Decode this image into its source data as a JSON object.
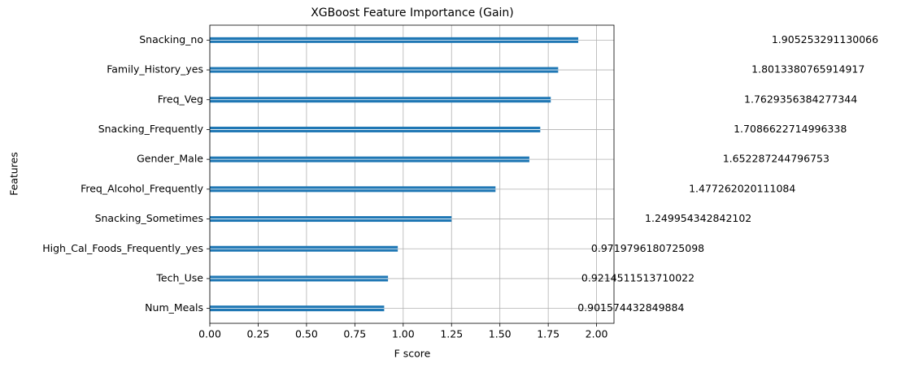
{
  "chart_data": {
    "type": "barh",
    "title": "XGBoost Feature Importance (Gain)",
    "xlabel": "F score",
    "ylabel": "Features",
    "categories": [
      "Snacking_no",
      "Family_History_yes",
      "Freq_Veg",
      "Snacking_Frequently",
      "Gender_Male",
      "Freq_Alcohol_Frequently",
      "Snacking_Sometimes",
      "High_Cal_Foods_Frequently_yes",
      "Tech_Use",
      "Num_Meals"
    ],
    "values": [
      1.905253291130066,
      1.8013380765914917,
      1.7629356384277344,
      1.7086622714996338,
      1.652287244796753,
      1.477262020111084,
      1.249954342842102,
      0.9719796180725098,
      0.9214511513710022,
      0.901574432849884
    ],
    "color": "#1f77b4",
    "xlim": [
      0,
      2.09
    ],
    "xticks": [
      {
        "value": 0,
        "label": "0.00"
      },
      0.25,
      {
        "value": 0.5,
        "label": "0.50"
      },
      0.75,
      {
        "value": 1,
        "label": "1.00"
      },
      1.25,
      {
        "value": 1.5,
        "label": "1.50"
      },
      1.75,
      {
        "value": 2,
        "label": "2.00"
      }
    ],
    "grid": true
  }
}
